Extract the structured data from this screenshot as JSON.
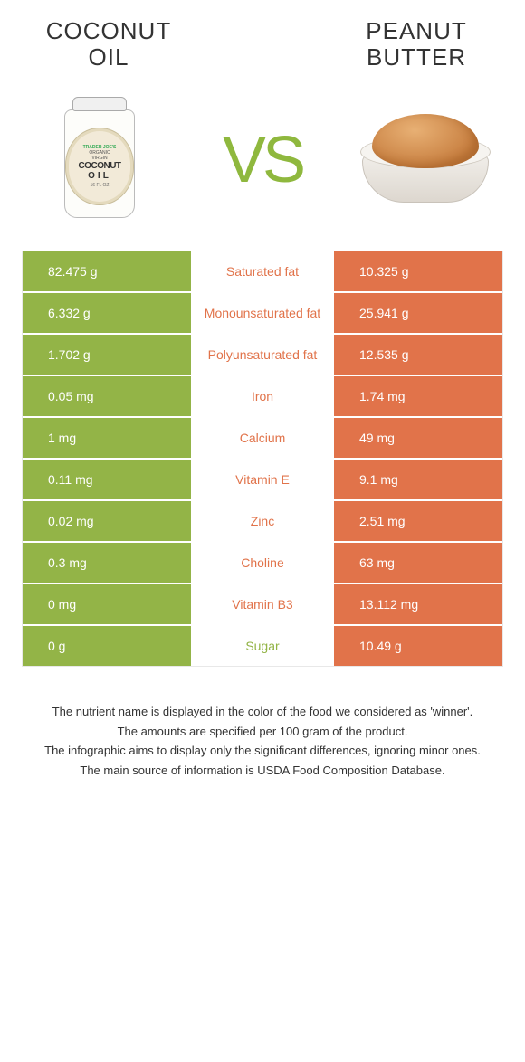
{
  "colors": {
    "left": "#93b447",
    "right": "#e1734a",
    "white": "#ffffff"
  },
  "food_left": {
    "name_line1": "COCONUT",
    "name_line2": "OIL"
  },
  "food_right": {
    "name_line1": "PEANUT",
    "name_line2": "BUTTER"
  },
  "vs_label": "VS",
  "jar_label": {
    "brand": "TRADER JOE'S",
    "sub1": "ORGANIC",
    "sub2": "VIRGIN",
    "main1": "COCONUT",
    "main2": "OIL",
    "size": "16 FL OZ"
  },
  "rows": [
    {
      "left": "82.475 g",
      "label": "Saturated fat",
      "right": "10.325 g",
      "winner": "right"
    },
    {
      "left": "6.332 g",
      "label": "Monounsaturated fat",
      "right": "25.941 g",
      "winner": "right"
    },
    {
      "left": "1.702 g",
      "label": "Polyunsaturated fat",
      "right": "12.535 g",
      "winner": "right"
    },
    {
      "left": "0.05 mg",
      "label": "Iron",
      "right": "1.74 mg",
      "winner": "right"
    },
    {
      "left": "1 mg",
      "label": "Calcium",
      "right": "49 mg",
      "winner": "right"
    },
    {
      "left": "0.11 mg",
      "label": "Vitamin E",
      "right": "9.1 mg",
      "winner": "right"
    },
    {
      "left": "0.02 mg",
      "label": "Zinc",
      "right": "2.51 mg",
      "winner": "right"
    },
    {
      "left": "0.3 mg",
      "label": "Choline",
      "right": "63 mg",
      "winner": "right"
    },
    {
      "left": "0 mg",
      "label": "Vitamin B3",
      "right": "13.112 mg",
      "winner": "right"
    },
    {
      "left": "0 g",
      "label": "Sugar",
      "right": "10.49 g",
      "winner": "left"
    }
  ],
  "footnotes": [
    "The nutrient name is displayed in the color of the food we considered as 'winner'.",
    "The amounts are specified per 100 gram of the product.",
    "The infographic aims to display only the significant differences, ignoring minor ones.",
    "The main source of information is USDA Food Composition Database."
  ]
}
